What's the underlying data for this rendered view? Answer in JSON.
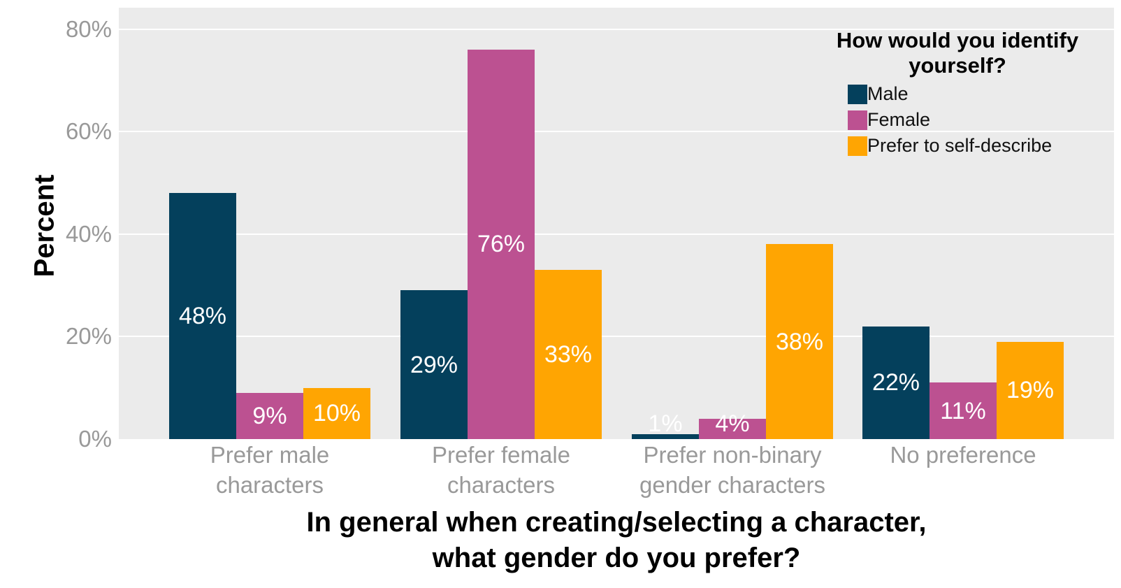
{
  "chart_data": {
    "type": "bar",
    "grouped": true,
    "title": "",
    "xlabel": "In general when creating/selecting a character,\nwhat gender do you prefer?",
    "ylabel": "Percent",
    "categories": [
      "Prefer male\ncharacters",
      "Prefer female\ncharacters",
      "Prefer non-binary\ngender characters",
      "No preference"
    ],
    "series": [
      {
        "name": "Male",
        "color": "#04405c",
        "values": [
          48,
          29,
          1,
          22
        ],
        "labels": [
          "48%",
          "29%",
          "1%",
          "22%"
        ]
      },
      {
        "name": "Female",
        "color": "#bc5191",
        "values": [
          9,
          76,
          4,
          11
        ],
        "labels": [
          "9%",
          "76%",
          "4%",
          "11%"
        ]
      },
      {
        "name": "Prefer to self-describe",
        "color": "#ffa502",
        "values": [
          10,
          33,
          38,
          19
        ],
        "labels": [
          "10%",
          "33%",
          "38%",
          "19%"
        ]
      }
    ],
    "yticks": [
      {
        "value": 0,
        "label": "0%"
      },
      {
        "value": 20,
        "label": "20%"
      },
      {
        "value": 40,
        "label": "40%"
      },
      {
        "value": 60,
        "label": "60%"
      },
      {
        "value": 80,
        "label": "80%"
      }
    ],
    "ylim": [
      0,
      84.2
    ],
    "grid": "horizontal",
    "grid_color": "#ffffff",
    "panel_bg": "#ebebeb",
    "tick_label_color": "#999999",
    "value_label_color": "#ffffff",
    "legend_position": "top-right-inside"
  },
  "legend": {
    "title": "How would you identify\nyourself?"
  }
}
